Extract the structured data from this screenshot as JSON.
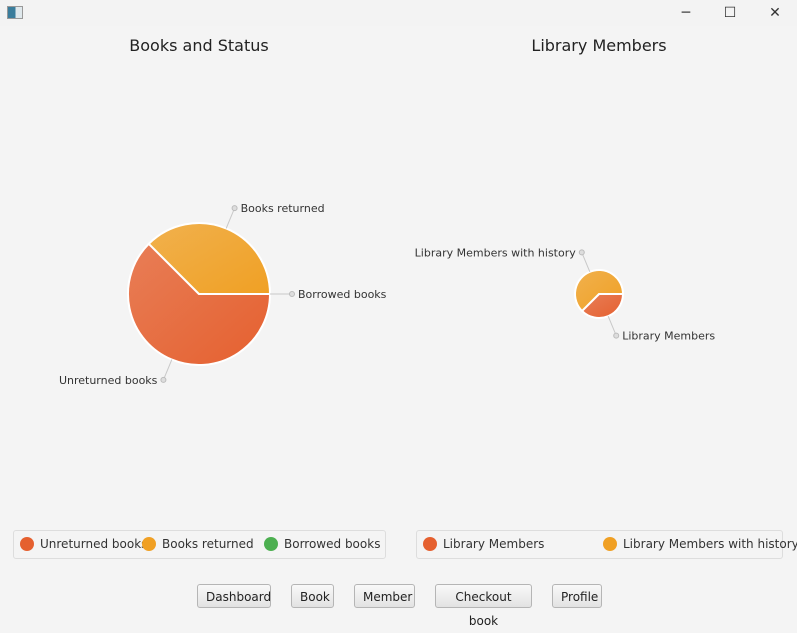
{
  "window": {
    "icon": "app-window-icon",
    "minimize": "─",
    "maximize": "☐",
    "close": "✕"
  },
  "charts": [
    {
      "type": "pie",
      "title": "Books and Status",
      "clockwise": true,
      "start_angle": 0,
      "slices": [
        {
          "name": "Unreturned books",
          "value": 5,
          "color": "#e5602f"
        },
        {
          "name": "Books returned",
          "value": 3,
          "color": "#f0a024"
        },
        {
          "name": "Borrowed books",
          "value": 0,
          "color": "#4caf50"
        }
      ]
    },
    {
      "type": "pie",
      "title": "Library Members",
      "clockwise": true,
      "start_angle": 0,
      "slices": [
        {
          "name": "Library Members",
          "value": 3,
          "color": "#e5602f"
        },
        {
          "name": "Library Members with history",
          "value": 5,
          "color": "#f0a024"
        }
      ]
    }
  ],
  "buttons": [
    "Dashboard",
    "Book",
    "Member",
    "Checkout book",
    "Profile"
  ]
}
